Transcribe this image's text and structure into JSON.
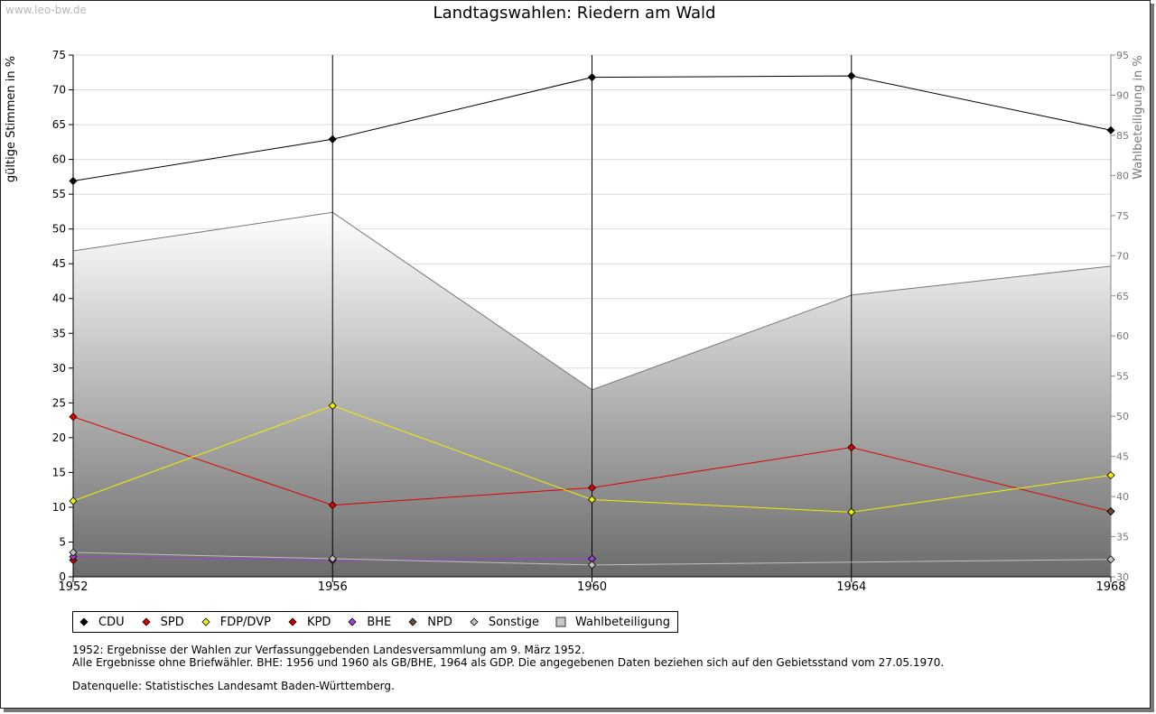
{
  "page": {
    "watermark": "www.leo-bw.de"
  },
  "chart_data": {
    "type": "line",
    "title": "Landtagswahlen: Riedern am Wald",
    "x": [
      1952,
      1956,
      1960,
      1964,
      1968
    ],
    "xlabel": "",
    "ylabel": "gültige Stimmen in %",
    "ylabel_right": "Wahlbeteiligung in %",
    "ylim": [
      0,
      75
    ],
    "ylim_right": [
      30,
      95
    ],
    "yticks": [
      0,
      5,
      10,
      15,
      20,
      25,
      30,
      35,
      40,
      45,
      50,
      55,
      60,
      65,
      70,
      75
    ],
    "yticks_right": [
      30,
      35,
      40,
      45,
      50,
      55,
      60,
      65,
      70,
      75,
      80,
      85,
      90,
      95
    ],
    "grid": true,
    "legend_position": "bottom",
    "area": {
      "name": "Wahlbeteiligung",
      "axis": "right",
      "values": [
        70.6,
        75.4,
        53.3,
        65.1,
        68.7
      ],
      "color": "#a0a0a0"
    },
    "series": [
      {
        "name": "CDU",
        "color": "#000000",
        "values": [
          56.9,
          62.9,
          71.8,
          72.0,
          64.2
        ]
      },
      {
        "name": "SPD",
        "color": "#e00000",
        "values": [
          23.0,
          10.3,
          12.8,
          18.6,
          9.4
        ]
      },
      {
        "name": "FDP/DVP",
        "color": "#f0f000",
        "values": [
          10.9,
          24.6,
          11.1,
          9.3,
          14.6
        ]
      },
      {
        "name": "KPD",
        "color": "#cc0000",
        "values": [
          2.4,
          null,
          null,
          null,
          null
        ]
      },
      {
        "name": "BHE",
        "color": "#a040d0",
        "values": [
          2.9,
          2.4,
          2.6,
          null,
          null
        ]
      },
      {
        "name": "NPD",
        "color": "#6b4a3a",
        "values": [
          null,
          null,
          null,
          null,
          9.4
        ]
      },
      {
        "name": "Sonstige",
        "color": "#c0c0c0",
        "values": [
          3.5,
          2.6,
          1.7,
          null,
          2.5
        ]
      }
    ],
    "legend": [
      "CDU",
      "SPD",
      "FDP/DVP",
      "KPD",
      "BHE",
      "NPD",
      "Sonstige",
      "Wahlbeteiligung"
    ]
  },
  "notes": {
    "line1": "1952: Ergebnisse der Wahlen zur Verfassunggebenden Landesversammlung am 9. März 1952.",
    "line2": "Alle Ergebnisse ohne Briefwähler. BHE: 1956 und 1960 als GB/BHE, 1964 als GDP. Die angegebenen Daten beziehen sich auf den Gebietsstand vom 27.05.1970.",
    "source": "Datenquelle: Statistisches Landesamt Baden-Württemberg."
  }
}
